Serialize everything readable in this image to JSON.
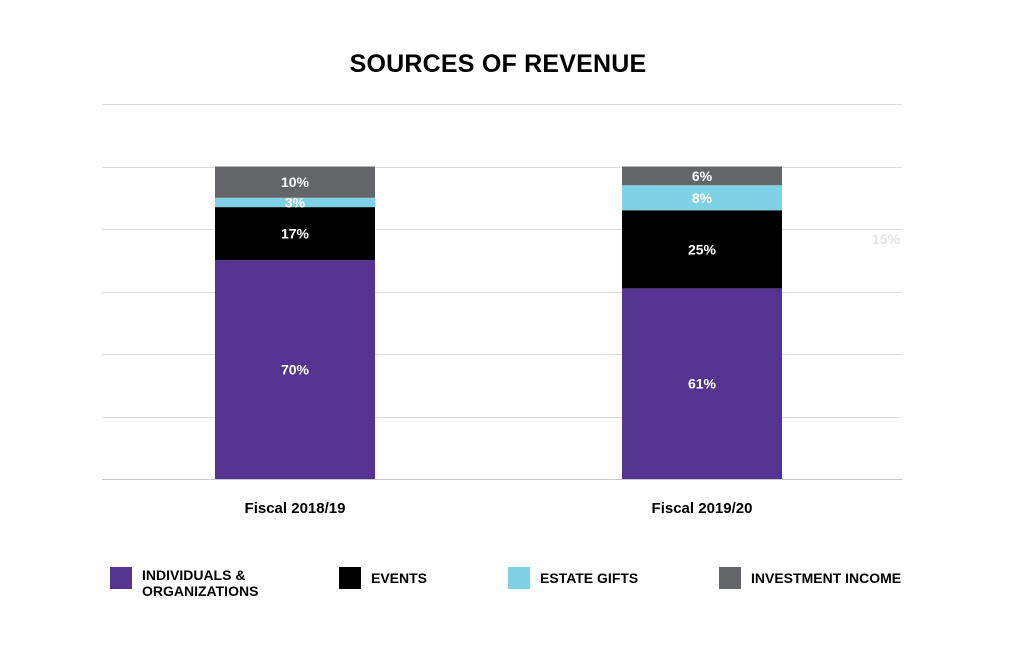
{
  "chart_data": {
    "type": "bar",
    "stacked": true,
    "title": "SOURCES OF REVENUE",
    "xlabel": "",
    "ylabel": "",
    "ylim": [
      0,
      120
    ],
    "grid": true,
    "categories": [
      "Fiscal 2018/19",
      "Fiscal 2019/20"
    ],
    "series": [
      {
        "name": "INDIVIDUALS & ORGANIZATIONS",
        "color": "#553391",
        "label_color": "#ffffff",
        "values": [
          70,
          61
        ],
        "labels": [
          "70%",
          "61%"
        ]
      },
      {
        "name": "EVENTS",
        "color": "#000000",
        "label_color": "#ffffff",
        "values": [
          17,
          25
        ],
        "labels": [
          "17%",
          "25%"
        ]
      },
      {
        "name": "ESTATE GIFTS",
        "color": "#7fd2e6",
        "label_color": "#ffffff",
        "values": [
          3,
          8
        ],
        "labels": [
          "3%",
          "8%"
        ]
      },
      {
        "name": "INVESTMENT INCOME",
        "color": "#646569",
        "label_color": "#ffffff",
        "values": [
          10,
          6
        ],
        "labels": [
          "10%",
          "6%"
        ]
      }
    ],
    "annotations": [
      {
        "text": "15%",
        "color": "#e6e6e6"
      }
    ],
    "legend_position": "bottom"
  }
}
